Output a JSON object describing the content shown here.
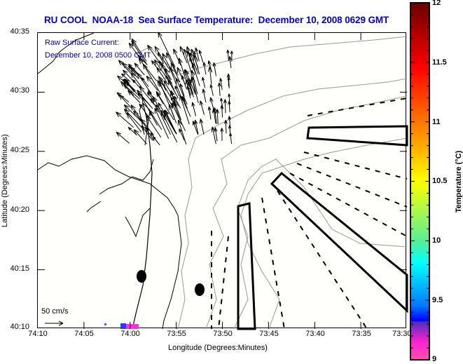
{
  "title": "RU COOL  NOAA-18  Sea Surface Temperature:  December 10, 2008 0629 GMT",
  "current_label": {
    "line1": "Raw Surface Current:",
    "line2": "December 10, 2008 0500 GMT"
  },
  "scale_arrow_label": "50 cm/s",
  "axes": {
    "xlabel": "Longitude (Degrees:Minutes)",
    "ylabel": "Latitude (Degrees:Minutes)",
    "xticks": [
      "74:10",
      "74:05",
      "74:00",
      "73:55",
      "73:50",
      "73:45",
      "73:40",
      "73:35",
      "73:30"
    ],
    "yticks": [
      "40:35",
      "40:30",
      "40:25",
      "40:20",
      "40:15",
      "40:10"
    ]
  },
  "colorbar": {
    "label": "Temperature (°C)",
    "ticks": [
      "12",
      "11.5",
      "11",
      "10.5",
      "10",
      "9.5",
      "9"
    ],
    "range": [
      9,
      12
    ],
    "colors": [
      "#7a0000",
      "#ff0000",
      "#ff8c00",
      "#ffff00",
      "#66ff88",
      "#00ffff",
      "#0088ff",
      "#0000ff",
      "#8030c0",
      "#ff20d0",
      "#ff40a0"
    ]
  },
  "chart_data": {
    "type": "heatmap",
    "title": "RU COOL  NOAA-18  Sea Surface Temperature:  December 10, 2008 0629 GMT",
    "xlabel": "Longitude (Degrees:Minutes)",
    "ylabel": "Latitude (Degrees:Minutes)",
    "xlim": [
      "74:10",
      "73:30"
    ],
    "ylim": [
      "40:10",
      "40:35"
    ],
    "color_range_c": [
      9,
      12
    ],
    "sst_patches": [
      {
        "lon": "74:00",
        "lat": "40:10",
        "temp_c": 9.2,
        "note": "small magenta/blue patch near coast"
      }
    ],
    "annotations": [
      "Raw Surface Current:",
      "December 10, 2008 0500 GMT",
      "50 cm/s"
    ]
  }
}
